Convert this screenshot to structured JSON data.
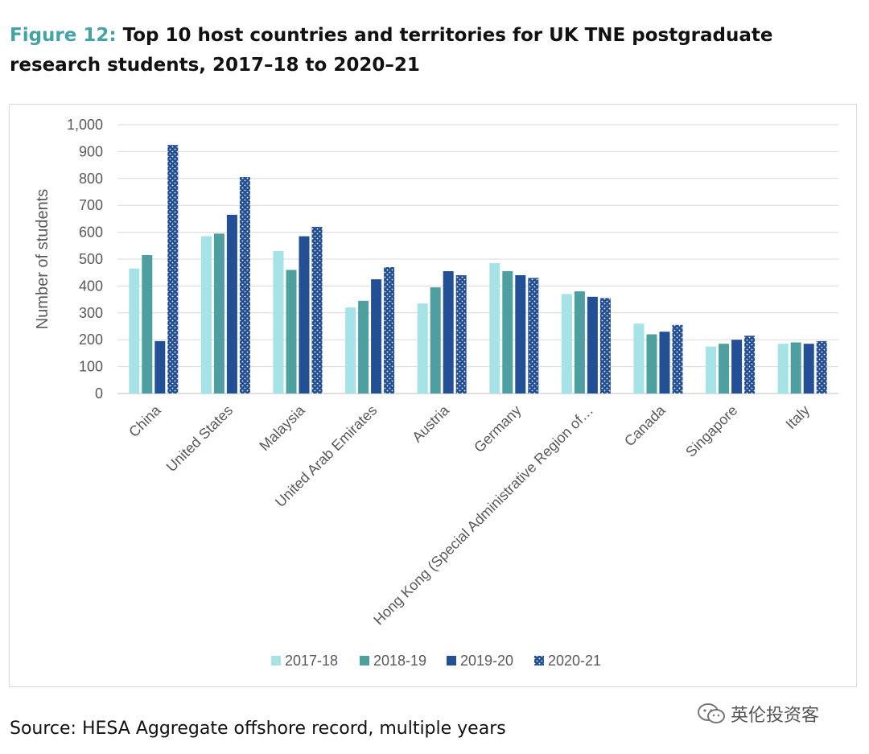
{
  "header": {
    "figure_label": "Figure 12:",
    "title": "Top 10 host countries and territories for UK TNE postgraduate research students, 2017–18 to 2020–21"
  },
  "footer": {
    "source": "Source: HESA Aggregate offshore record, multiple years",
    "watermark": "英伦投资客"
  },
  "chart_data": {
    "type": "bar",
    "title": "Top 10 host countries and territories for UK TNE postgraduate research students, 2017–18 to 2020–21",
    "xlabel": "",
    "ylabel": "Number of students",
    "ylim": [
      0,
      1000
    ],
    "yticks": [
      0,
      100,
      200,
      300,
      400,
      500,
      600,
      700,
      800,
      900,
      1000
    ],
    "ytick_labels": [
      "0",
      "100",
      "200",
      "300",
      "400",
      "500",
      "600",
      "700",
      "800",
      "900",
      "1,000"
    ],
    "grid": true,
    "legend_position": "bottom",
    "categories": [
      "China",
      "United States",
      "Malaysia",
      "United Arab Emirates",
      "Austria",
      "Germany",
      "Hong Kong (Special Administrative Region of…",
      "Canada",
      "Singapore",
      "Italy"
    ],
    "series": [
      {
        "name": "2017-18",
        "color": "#a6e3e6",
        "pattern": "solid",
        "values": [
          465,
          585,
          530,
          320,
          335,
          485,
          370,
          260,
          175,
          185
        ]
      },
      {
        "name": "2018-19",
        "color": "#4d9fa0",
        "pattern": "solid",
        "values": [
          515,
          595,
          460,
          345,
          395,
          455,
          380,
          220,
          185,
          190
        ]
      },
      {
        "name": "2019-20",
        "color": "#234f94",
        "pattern": "solid",
        "values": [
          195,
          665,
          585,
          425,
          455,
          440,
          360,
          230,
          200,
          185
        ]
      },
      {
        "name": "2020-21",
        "color": "#234f94",
        "pattern": "dotted",
        "values": [
          925,
          805,
          620,
          470,
          440,
          430,
          355,
          255,
          215,
          195
        ]
      }
    ]
  }
}
